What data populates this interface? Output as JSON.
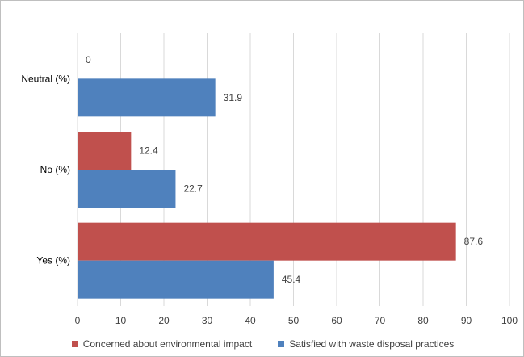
{
  "chart_data": {
    "type": "bar",
    "orientation": "horizontal",
    "categories": [
      "Yes (%)",
      "No (%)",
      "Neutral (%)"
    ],
    "series": [
      {
        "name": "Concerned about environmental impact",
        "values": [
          87.6,
          12.4,
          0
        ],
        "color": "#c0504d"
      },
      {
        "name": "Satisfied with waste disposal practices",
        "values": [
          45.4,
          22.7,
          31.9
        ],
        "color": "#4f81bd"
      }
    ],
    "xlim": [
      0,
      100
    ],
    "xticks": [
      0,
      10,
      20,
      30,
      40,
      50,
      60,
      70,
      80,
      90,
      100
    ],
    "grid": true,
    "legend_position": "bottom",
    "data_labels": true
  }
}
